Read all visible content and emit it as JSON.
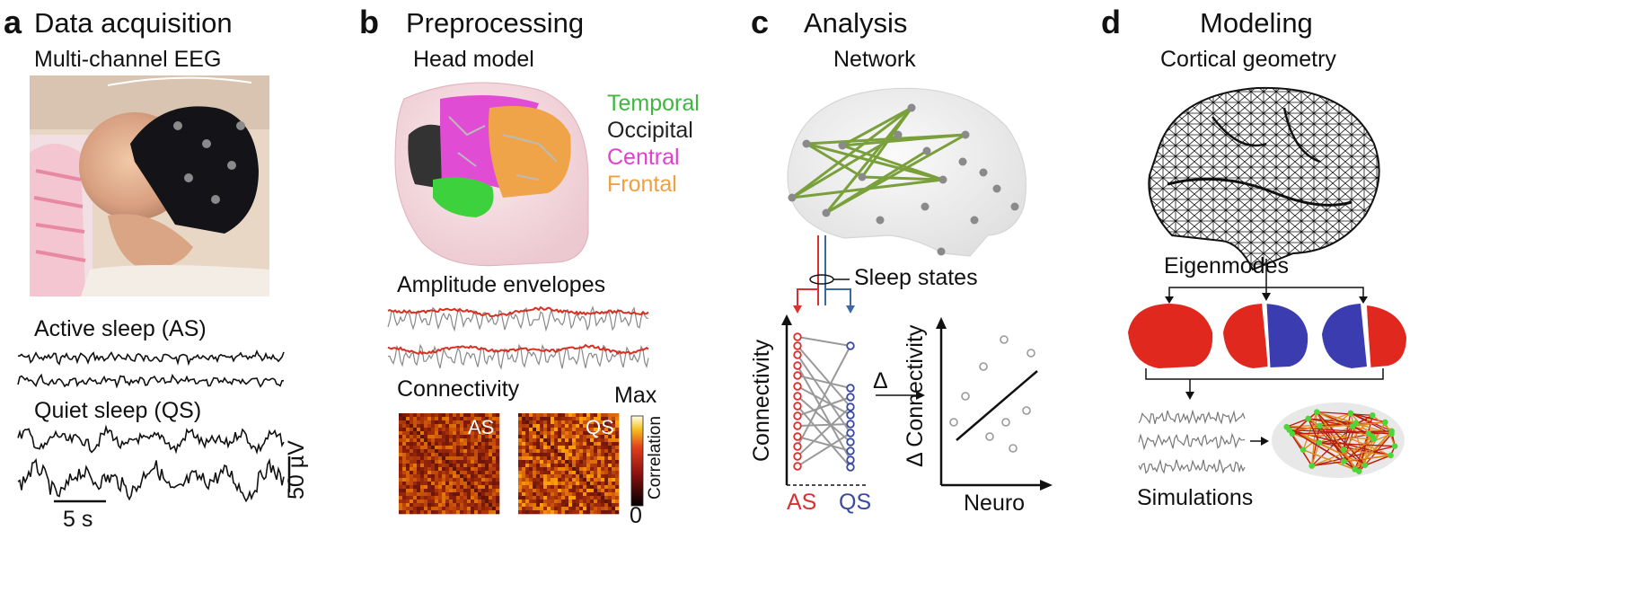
{
  "panels": [
    {
      "letter": "a",
      "title": "Data acquisition",
      "subtitle": "Multi-channel EEG"
    },
    {
      "letter": "b",
      "title": "Preprocessing",
      "subtitle": "Head model"
    },
    {
      "letter": "c",
      "title": "Analysis",
      "subtitle": "Network"
    },
    {
      "letter": "d",
      "title": "Modeling",
      "subtitle": "Cortical geometry"
    }
  ],
  "panel_a": {
    "active_label": "Active sleep (AS)",
    "quiet_label": "Quiet sleep (QS)",
    "amp_scale": "50 µV",
    "time_scale": "5 s"
  },
  "panel_b": {
    "regions": [
      {
        "name": "Temporal",
        "color": "#3cb83c"
      },
      {
        "name": "Occipital",
        "color": "#222222"
      },
      {
        "name": "Central",
        "color": "#e040d0"
      },
      {
        "name": "Frontal",
        "color": "#f0a040"
      }
    ],
    "envelopes_label": "Amplitude envelopes",
    "connectivity_label": "Connectivity",
    "matrix_labels": [
      "AS",
      "QS"
    ],
    "colorbar_max": "Max",
    "colorbar_min": "0",
    "colorbar_label": "Correlation"
  },
  "panel_c": {
    "sleep_states": "Sleep states",
    "y_axis": "Connectivity",
    "as_label": "AS",
    "qs_label": "QS",
    "delta": "Δ",
    "scatter_y": "Δ Connectivity",
    "scatter_x": "Neuro",
    "as_color": "#d93030",
    "qs_color": "#3a4aa0"
  },
  "panel_d": {
    "eigenmodes": "Eigenmodes",
    "simulations": "Simulations"
  }
}
